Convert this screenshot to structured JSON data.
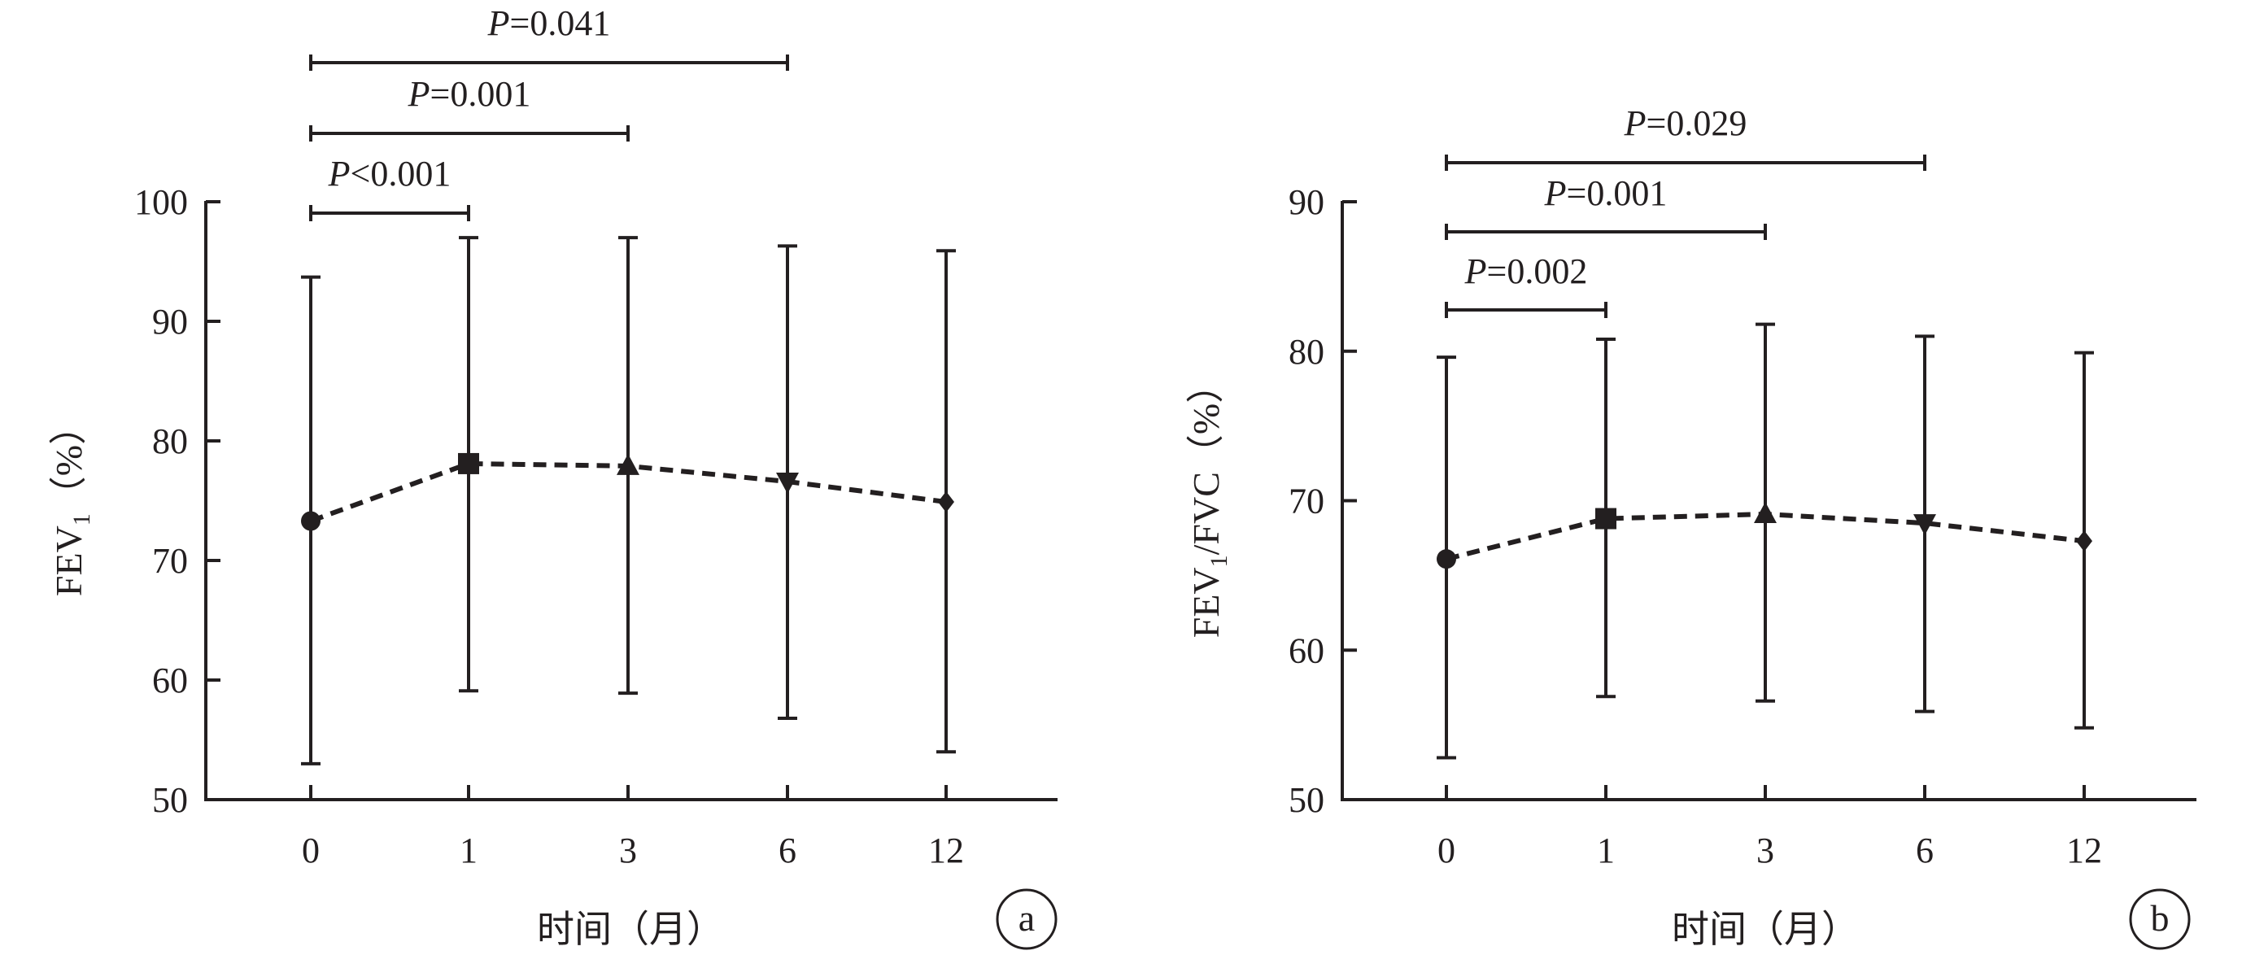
{
  "colors": {
    "ink": "#231f20",
    "background": "#ffffff"
  },
  "chart_data": [
    {
      "type": "line",
      "panel": "a",
      "xlabel": "时间（月）",
      "ylabel": "FEV",
      "ylabel_sub": "1",
      "ylabel_suffix": "（%）",
      "categories": [
        "0",
        "1",
        "3",
        "6",
        "12"
      ],
      "ylim": [
        50,
        100
      ],
      "yticks": [
        50,
        60,
        70,
        80,
        90,
        100
      ],
      "grid": false,
      "line_style": "dashed",
      "markers": [
        "circle",
        "square",
        "triangle-up",
        "triangle-down",
        "diamond"
      ],
      "series": [
        {
          "values": [
            73.3,
            78.1,
            77.9,
            76.6,
            74.9
          ],
          "error_high": [
            93.7,
            97.0,
            97.0,
            96.3,
            95.9
          ],
          "error_low": [
            53.0,
            59.1,
            58.9,
            56.8,
            54.0
          ]
        }
      ],
      "comparisons": [
        {
          "from": "0",
          "to": "1",
          "label_italic": "P",
          "label": "<0.001"
        },
        {
          "from": "0",
          "to": "3",
          "label_italic": "P",
          "label": "=0.001"
        },
        {
          "from": "0",
          "to": "6",
          "label_italic": "P",
          "label": "=0.041"
        }
      ]
    },
    {
      "type": "line",
      "panel": "b",
      "xlabel": "时间（月）",
      "ylabel": "FEV",
      "ylabel_sub": "1",
      "ylabel_suffix": "/FVC（%）",
      "categories": [
        "0",
        "1",
        "3",
        "6",
        "12"
      ],
      "ylim": [
        50,
        90
      ],
      "yticks": [
        50,
        60,
        70,
        80,
        90
      ],
      "grid": false,
      "line_style": "dashed",
      "markers": [
        "circle",
        "square",
        "triangle-up",
        "triangle-down",
        "diamond"
      ],
      "series": [
        {
          "values": [
            66.1,
            68.8,
            69.1,
            68.5,
            67.3
          ],
          "error_high": [
            79.6,
            80.8,
            81.8,
            81.0,
            79.9
          ],
          "error_low": [
            52.8,
            56.9,
            56.6,
            55.9,
            54.8
          ]
        }
      ],
      "comparisons": [
        {
          "from": "0",
          "to": "1",
          "label_italic": "P",
          "label": "=0.002"
        },
        {
          "from": "0",
          "to": "3",
          "label_italic": "P",
          "label": "=0.001"
        },
        {
          "from": "0",
          "to": "6",
          "label_italic": "P",
          "label": "=0.029"
        }
      ]
    }
  ]
}
